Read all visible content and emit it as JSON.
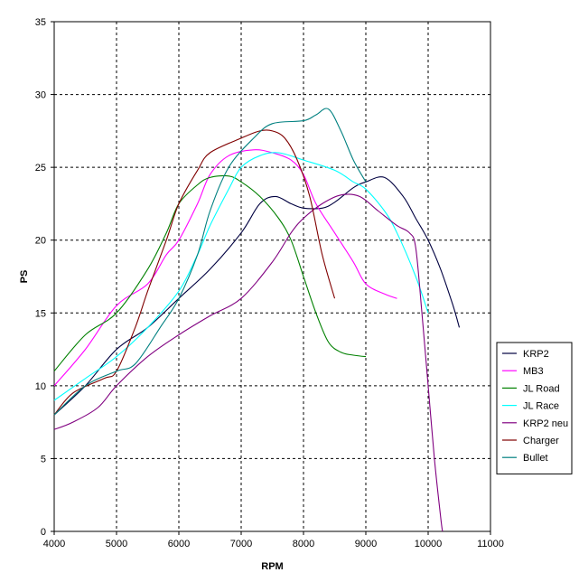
{
  "chart_data": {
    "type": "line",
    "xlabel": "RPM",
    "ylabel": "PS",
    "xlim": [
      4000,
      11000
    ],
    "ylim": [
      0,
      35
    ],
    "xticks": [
      "4000",
      "5000",
      "6000",
      "7000",
      "8000",
      "9000",
      "10000",
      "11000"
    ],
    "yticks": [
      "0",
      "5",
      "10",
      "15",
      "20",
      "25",
      "30",
      "35"
    ],
    "grid": true,
    "legend_position": "bottom-right",
    "series": [
      {
        "name": "KRP2",
        "color": "#000040",
        "points": [
          [
            4000,
            8
          ],
          [
            4500,
            10
          ],
          [
            5000,
            12.5
          ],
          [
            5500,
            14
          ],
          [
            6000,
            16
          ],
          [
            6500,
            18
          ],
          [
            7000,
            20.5
          ],
          [
            7300,
            22.5
          ],
          [
            7550,
            23
          ],
          [
            7800,
            22.5
          ],
          [
            8000,
            22.2
          ],
          [
            8300,
            22.2
          ],
          [
            8500,
            22.6
          ],
          [
            8800,
            23.6
          ],
          [
            9000,
            24
          ],
          [
            9300,
            24.3
          ],
          [
            9600,
            23
          ],
          [
            9800,
            21.5
          ],
          [
            10000,
            20
          ],
          [
            10200,
            18
          ],
          [
            10400,
            15.5
          ],
          [
            10500,
            14
          ]
        ]
      },
      {
        "name": "MB3",
        "color": "#ff00ff",
        "points": [
          [
            4000,
            10
          ],
          [
            4500,
            12.5
          ],
          [
            5000,
            15.5
          ],
          [
            5500,
            17
          ],
          [
            5800,
            19
          ],
          [
            6000,
            20
          ],
          [
            6300,
            22.5
          ],
          [
            6500,
            24.5
          ],
          [
            6800,
            25.8
          ],
          [
            7200,
            26.2
          ],
          [
            7500,
            26
          ],
          [
            7800,
            25.5
          ],
          [
            8000,
            24.5
          ],
          [
            8200,
            22.5
          ],
          [
            8500,
            20.5
          ],
          [
            8800,
            18.5
          ],
          [
            9000,
            17
          ],
          [
            9300,
            16.3
          ],
          [
            9500,
            16
          ]
        ]
      },
      {
        "name": "JL Road",
        "color": "#008000",
        "points": [
          [
            4000,
            11
          ],
          [
            4500,
            13.5
          ],
          [
            5000,
            15
          ],
          [
            5500,
            18
          ],
          [
            5800,
            20.5
          ],
          [
            6000,
            22.5
          ],
          [
            6300,
            23.8
          ],
          [
            6500,
            24.3
          ],
          [
            6800,
            24.4
          ],
          [
            7000,
            24
          ],
          [
            7300,
            23
          ],
          [
            7600,
            21.5
          ],
          [
            7800,
            20
          ],
          [
            8000,
            17.5
          ],
          [
            8200,
            15
          ],
          [
            8400,
            13
          ],
          [
            8600,
            12.3
          ],
          [
            8800,
            12.1
          ],
          [
            9000,
            12
          ]
        ]
      },
      {
        "name": "JL Race",
        "color": "#00ffff",
        "points": [
          [
            4000,
            9
          ],
          [
            4500,
            10.5
          ],
          [
            5000,
            12
          ],
          [
            5500,
            14
          ],
          [
            6000,
            16.5
          ],
          [
            6300,
            19
          ],
          [
            6500,
            21
          ],
          [
            6800,
            23.5
          ],
          [
            7000,
            25
          ],
          [
            7300,
            25.8
          ],
          [
            7600,
            26
          ],
          [
            8000,
            25.5
          ],
          [
            8500,
            24.8
          ],
          [
            8800,
            24
          ],
          [
            9000,
            23.5
          ],
          [
            9300,
            22
          ],
          [
            9500,
            20.5
          ],
          [
            9800,
            17.5
          ],
          [
            10000,
            15
          ]
        ]
      },
      {
        "name": "KRP2 neu",
        "color": "#800080",
        "points": [
          [
            4000,
            7
          ],
          [
            4300,
            7.5
          ],
          [
            4700,
            8.5
          ],
          [
            5000,
            10
          ],
          [
            5500,
            12
          ],
          [
            6000,
            13.5
          ],
          [
            6500,
            14.8
          ],
          [
            7000,
            16
          ],
          [
            7500,
            18.5
          ],
          [
            7800,
            20.5
          ],
          [
            8000,
            21.5
          ],
          [
            8300,
            22.5
          ],
          [
            8600,
            23.1
          ],
          [
            8900,
            23
          ],
          [
            9200,
            22
          ],
          [
            9500,
            21
          ],
          [
            9700,
            20.5
          ],
          [
            9800,
            19.5
          ],
          [
            9900,
            15
          ],
          [
            10000,
            10
          ],
          [
            10100,
            5
          ],
          [
            10200,
            1
          ],
          [
            10230,
            0
          ]
        ]
      },
      {
        "name": "Charger",
        "color": "#800000",
        "points": [
          [
            4000,
            8
          ],
          [
            4300,
            9.5
          ],
          [
            4800,
            10.5
          ],
          [
            5000,
            11
          ],
          [
            5300,
            14
          ],
          [
            5500,
            16.5
          ],
          [
            5800,
            20
          ],
          [
            6000,
            22.5
          ],
          [
            6300,
            24.8
          ],
          [
            6500,
            26
          ],
          [
            7000,
            27
          ],
          [
            7300,
            27.5
          ],
          [
            7500,
            27.5
          ],
          [
            7700,
            27
          ],
          [
            7900,
            25.5
          ],
          [
            8100,
            23
          ],
          [
            8300,
            19
          ],
          [
            8500,
            16
          ]
        ]
      },
      {
        "name": "Bullet",
        "color": "#008080",
        "points": [
          [
            4000,
            8
          ],
          [
            4500,
            10
          ],
          [
            5000,
            11
          ],
          [
            5300,
            11.5
          ],
          [
            5700,
            14
          ],
          [
            6000,
            16
          ],
          [
            6300,
            19
          ],
          [
            6500,
            22
          ],
          [
            6800,
            25
          ],
          [
            7200,
            27
          ],
          [
            7500,
            28
          ],
          [
            8000,
            28.2
          ],
          [
            8200,
            28.6
          ],
          [
            8400,
            29
          ],
          [
            8600,
            27.5
          ],
          [
            8800,
            25.5
          ],
          [
            9000,
            24
          ]
        ]
      }
    ]
  }
}
